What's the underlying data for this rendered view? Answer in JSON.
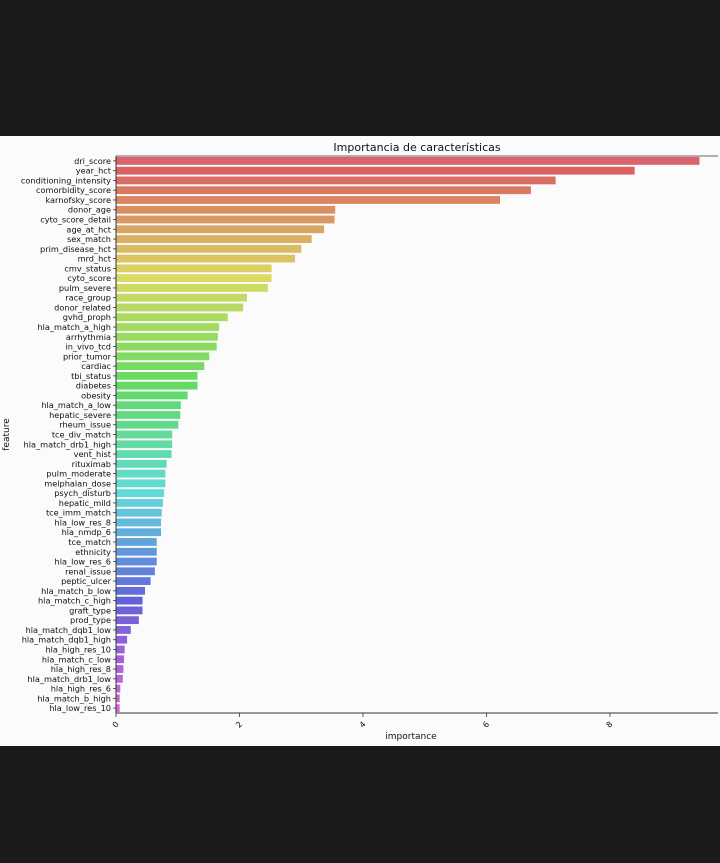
{
  "chart_data": {
    "type": "bar",
    "orientation": "horizontal",
    "title": "Importancia de características",
    "xlabel": "importance",
    "ylabel": "feature",
    "xlim": [
      0,
      9.75
    ],
    "xticks": [
      0,
      2,
      4,
      6,
      8
    ],
    "categories": [
      "dri_score",
      "year_hct",
      "conditioning_intensity",
      "comorbidity_score",
      "karnofsky_score",
      "donor_age",
      "cyto_score_detail",
      "age_at_hct",
      "sex_match",
      "prim_disease_hct",
      "mrd_hct",
      "cmv_status",
      "cyto_score",
      "pulm_severe",
      "race_group",
      "donor_related",
      "gvhd_proph",
      "hla_match_a_high",
      "arrhythmia",
      "in_vivo_tcd",
      "prior_tumor",
      "cardiac",
      "tbi_status",
      "diabetes",
      "obesity",
      "hla_match_a_low",
      "hepatic_severe",
      "rheum_issue",
      "tce_div_match",
      "hla_match_drb1_high",
      "vent_hist",
      "rituximab",
      "pulm_moderate",
      "melphalan_dose",
      "psych_disturb",
      "hepatic_mild",
      "tce_imm_match",
      "hla_low_res_8",
      "hla_nmdp_6",
      "tce_match",
      "ethnicity",
      "hla_low_res_6",
      "renal_issue",
      "peptic_ulcer",
      "hla_match_b_low",
      "hla_match_c_high",
      "graft_type",
      "prod_type",
      "hla_match_dqb1_low",
      "hla_match_dqb1_high",
      "hla_high_res_10",
      "hla_match_c_low",
      "hla_high_res_8",
      "hla_match_drb1_low",
      "hla_high_res_6",
      "hla_match_b_high",
      "hla_low_res_10"
    ],
    "values": [
      9.45,
      8.4,
      7.12,
      6.72,
      6.22,
      3.55,
      3.54,
      3.37,
      3.17,
      3.0,
      2.9,
      2.52,
      2.52,
      2.46,
      2.12,
      2.06,
      1.81,
      1.67,
      1.65,
      1.63,
      1.51,
      1.43,
      1.32,
      1.32,
      1.16,
      1.05,
      1.04,
      1.01,
      0.91,
      0.91,
      0.9,
      0.82,
      0.8,
      0.8,
      0.78,
      0.76,
      0.74,
      0.73,
      0.73,
      0.66,
      0.66,
      0.66,
      0.63,
      0.56,
      0.47,
      0.43,
      0.43,
      0.37,
      0.24,
      0.18,
      0.14,
      0.13,
      0.12,
      0.11,
      0.07,
      0.06,
      0.06
    ]
  }
}
